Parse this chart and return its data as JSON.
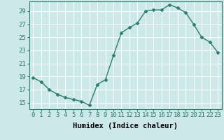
{
  "x": [
    0,
    1,
    2,
    3,
    4,
    5,
    6,
    7,
    8,
    9,
    10,
    11,
    12,
    13,
    14,
    15,
    16,
    17,
    18,
    19,
    20,
    21,
    22,
    23
  ],
  "y": [
    18.8,
    18.2,
    17.0,
    16.3,
    15.8,
    15.5,
    15.2,
    14.6,
    17.8,
    18.5,
    22.2,
    25.7,
    26.5,
    27.2,
    29.0,
    29.2,
    29.2,
    30.0,
    29.5,
    28.8,
    27.0,
    25.0,
    24.3,
    22.7
  ],
  "line_color": "#2e7d6e",
  "marker": "D",
  "marker_size": 2.5,
  "bg_color": "#cce8e8",
  "grid_color": "#ffffff",
  "xlabel": "Humidex (Indice chaleur)",
  "ylim": [
    14.0,
    30.5
  ],
  "xlim": [
    -0.5,
    23.5
  ],
  "yticks": [
    15,
    17,
    19,
    21,
    23,
    25,
    27,
    29
  ],
  "xticks": [
    0,
    1,
    2,
    3,
    4,
    5,
    6,
    7,
    8,
    9,
    10,
    11,
    12,
    13,
    14,
    15,
    16,
    17,
    18,
    19,
    20,
    21,
    22,
    23
  ],
  "xlabel_fontsize": 7.5,
  "tick_fontsize": 6.5,
  "line_width": 1.0
}
